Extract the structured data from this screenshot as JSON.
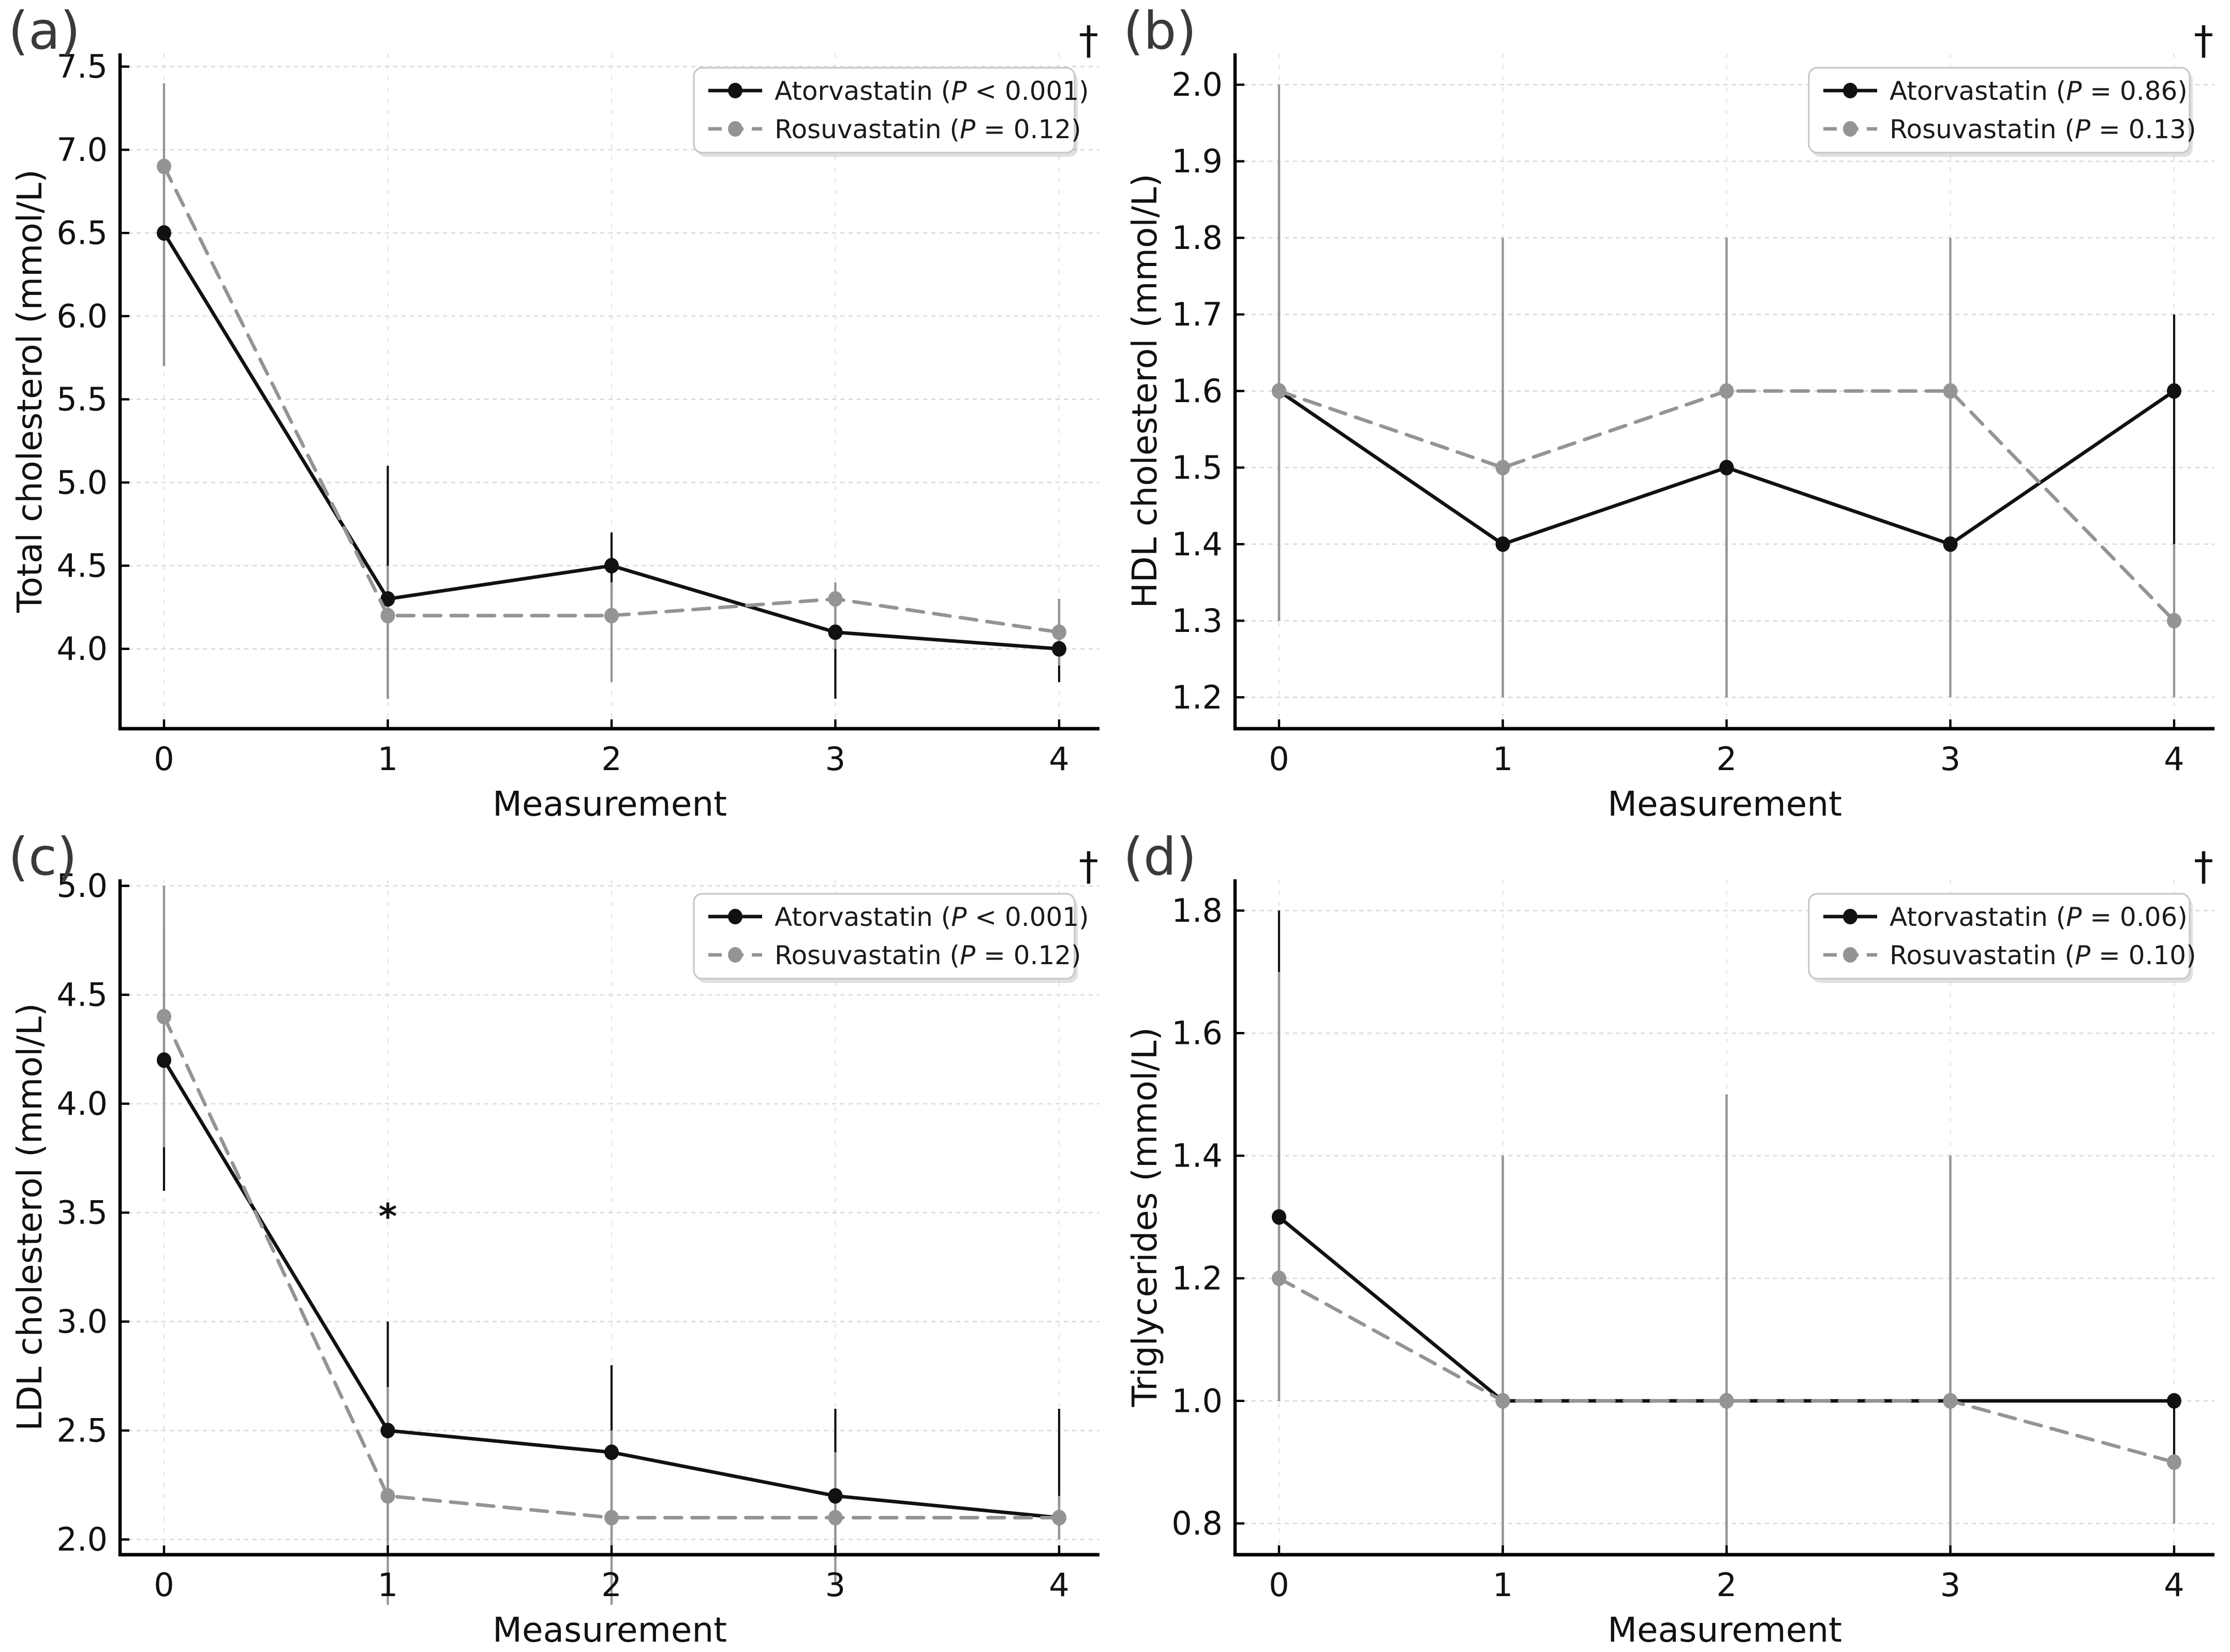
{
  "figure": {
    "background": "#ffffff",
    "xlabel": "Measurement",
    "series_colors": {
      "atorvastatin": "#111111",
      "rosuvastatin": "#949494"
    },
    "grid_color": "#dcdcdc",
    "axis_color": "#000000",
    "panel_label_color": "#3a3a3a",
    "dagger_symbol": "†",
    "asterisk_symbol": "*"
  },
  "chart_data": [
    {
      "id": "a",
      "panel_label": "(a)",
      "type": "line",
      "title": "",
      "xlabel": "Measurement",
      "ylabel": "Total cholesterol (mmol/L)",
      "x": [
        0,
        1,
        2,
        3,
        4
      ],
      "xtick_labels": [
        "0",
        "1",
        "2",
        "3",
        "4"
      ],
      "yticks": [
        4.0,
        4.5,
        5.0,
        5.5,
        6.0,
        6.5,
        7.0,
        7.5
      ],
      "ytick_labels": [
        "4.0",
        "4.5",
        "5.0",
        "5.5",
        "6.0",
        "6.5",
        "7.0",
        "7.5"
      ],
      "ylim": [
        3.52,
        7.58
      ],
      "grid": true,
      "legend_position": "top-right",
      "dagger": true,
      "annotations": [],
      "series": [
        {
          "name": "Atorvastatin (P < 0.001)",
          "key": "atorvastatin",
          "style": "solid",
          "values": [
            6.5,
            4.3,
            4.5,
            4.1,
            4.0
          ],
          "err_lo": [
            0.8,
            0.6,
            0.2,
            0.4,
            0.2
          ],
          "err_hi": [
            0.4,
            0.8,
            0.2,
            0.2,
            0.3
          ]
        },
        {
          "name": "Rosuvastatin (P = 0.12)",
          "key": "rosuvastatin",
          "style": "dashed",
          "values": [
            6.9,
            4.2,
            4.2,
            4.3,
            4.1
          ],
          "err_lo": [
            1.2,
            0.5,
            0.4,
            0.3,
            0.2
          ],
          "err_hi": [
            0.5,
            0.3,
            0.2,
            0.1,
            0.2
          ]
        }
      ]
    },
    {
      "id": "b",
      "panel_label": "(b)",
      "type": "line",
      "title": "",
      "xlabel": "Measurement",
      "ylabel": "HDL cholesterol (mmol/L)",
      "x": [
        0,
        1,
        2,
        3,
        4
      ],
      "xtick_labels": [
        "0",
        "1",
        "2",
        "3",
        "4"
      ],
      "yticks": [
        1.2,
        1.3,
        1.4,
        1.5,
        1.6,
        1.7,
        1.8,
        1.9,
        2.0
      ],
      "ytick_labels": [
        "1.2",
        "1.3",
        "1.4",
        "1.5",
        "1.6",
        "1.7",
        "1.8",
        "1.9",
        "2.0"
      ],
      "ylim": [
        1.159,
        2.041
      ],
      "grid": true,
      "legend_position": "top-right",
      "dagger": true,
      "annotations": [],
      "series": [
        {
          "name": "Atorvastatin (P = 0.86)",
          "key": "atorvastatin",
          "style": "solid",
          "values": [
            1.6,
            1.4,
            1.5,
            1.4,
            1.6
          ],
          "err_lo": [
            0.3,
            0.2,
            0.3,
            0.1,
            0.2
          ],
          "err_hi": [
            0.3,
            0.2,
            0.3,
            0.2,
            0.1
          ]
        },
        {
          "name": "Rosuvastatin (P = 0.13)",
          "key": "rosuvastatin",
          "style": "dashed",
          "values": [
            1.6,
            1.5,
            1.6,
            1.6,
            1.3
          ],
          "err_lo": [
            0.3,
            0.3,
            0.4,
            0.4,
            0.1
          ],
          "err_hi": [
            0.4,
            0.3,
            0.2,
            0.2,
            0.1
          ]
        }
      ]
    },
    {
      "id": "c",
      "panel_label": "(c)",
      "type": "line",
      "title": "",
      "xlabel": "Measurement",
      "ylabel": "LDL cholesterol (mmol/L)",
      "x": [
        0,
        1,
        2,
        3,
        4
      ],
      "xtick_labels": [
        "0",
        "1",
        "2",
        "3",
        "4"
      ],
      "yticks": [
        2.0,
        2.5,
        3.0,
        3.5,
        4.0,
        4.5,
        5.0
      ],
      "ytick_labels": [
        "2.0",
        "2.5",
        "3.0",
        "3.5",
        "4.0",
        "4.5",
        "5.0"
      ],
      "ylim": [
        1.93,
        5.03
      ],
      "grid": true,
      "legend_position": "top-right",
      "dagger": true,
      "annotations": [
        {
          "type": "asterisk",
          "x": 1,
          "y": 3.48,
          "text": "*"
        }
      ],
      "series": [
        {
          "name": "Atorvastatin (P < 0.001)",
          "key": "atorvastatin",
          "style": "solid",
          "values": [
            4.2,
            2.5,
            2.4,
            2.2,
            2.1
          ],
          "err_lo": [
            0.6,
            0.5,
            0.4,
            0.3,
            0.1
          ],
          "err_hi": [
            0.6,
            0.5,
            0.4,
            0.4,
            0.5
          ]
        },
        {
          "name": "Rosuvastatin (P = 0.12)",
          "key": "rosuvastatin",
          "style": "dashed",
          "values": [
            4.4,
            2.2,
            2.1,
            2.1,
            2.1
          ],
          "err_lo": [
            0.6,
            0.5,
            0.4,
            0.3,
            0.1
          ],
          "err_hi": [
            0.6,
            0.5,
            0.4,
            0.3,
            0.1
          ]
        }
      ]
    },
    {
      "id": "d",
      "panel_label": "(d)",
      "type": "line",
      "title": "",
      "xlabel": "Measurement",
      "ylabel": "Triglycerides (mmol/L)",
      "x": [
        0,
        1,
        2,
        3,
        4
      ],
      "xtick_labels": [
        "0",
        "1",
        "2",
        "3",
        "4"
      ],
      "yticks": [
        0.8,
        1.0,
        1.2,
        1.4,
        1.6,
        1.8
      ],
      "ytick_labels": [
        "0.8",
        "1.0",
        "1.2",
        "1.4",
        "1.6",
        "1.8"
      ],
      "ylim": [
        0.749,
        1.851
      ],
      "grid": true,
      "legend_position": "top-right",
      "dagger": true,
      "annotations": [],
      "series": [
        {
          "name": "Atorvastatin (P = 0.06)",
          "key": "atorvastatin",
          "style": "solid",
          "values": [
            1.3,
            1.0,
            1.0,
            1.0,
            1.0
          ],
          "err_lo": [
            0.3,
            0.25,
            0.25,
            0.25,
            0.1
          ],
          "err_hi": [
            0.5,
            0.4,
            0.5,
            0.4,
            0.0
          ]
        },
        {
          "name": "Rosuvastatin (P = 0.10)",
          "key": "rosuvastatin",
          "style": "dashed",
          "values": [
            1.2,
            1.0,
            1.0,
            1.0,
            0.9
          ],
          "err_lo": [
            0.2,
            0.25,
            0.25,
            0.25,
            0.1
          ],
          "err_hi": [
            0.5,
            0.4,
            0.5,
            0.4,
            0.0
          ]
        }
      ]
    }
  ]
}
